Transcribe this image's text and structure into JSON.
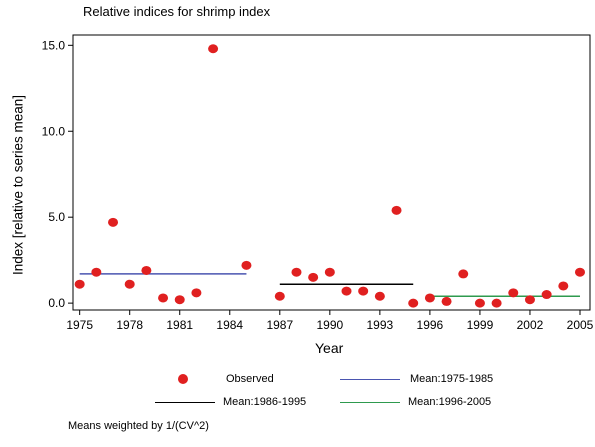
{
  "chart_data": {
    "type": "scatter",
    "title": "Relative indices for shrimp index",
    "xlabel": "Year",
    "ylabel": "Index [relative to series mean]",
    "xlim": [
      1974.6,
      2005.6
    ],
    "ylim": [
      -0.4,
      15.6
    ],
    "x_ticks": [
      "1975",
      "1978",
      "1981",
      "1984",
      "1987",
      "1990",
      "1993",
      "1996",
      "1999",
      "2002",
      "2005"
    ],
    "y_ticks": [
      "0.0",
      "5.0",
      "10.0",
      "15.0"
    ],
    "grid": false,
    "series": [
      {
        "name": "Observed",
        "color": "#e02020",
        "points": [
          {
            "x": 1975,
            "y": 1.1
          },
          {
            "x": 1976,
            "y": 1.8
          },
          {
            "x": 1977,
            "y": 4.7
          },
          {
            "x": 1978,
            "y": 1.1
          },
          {
            "x": 1979,
            "y": 1.9
          },
          {
            "x": 1980,
            "y": 0.3
          },
          {
            "x": 1981,
            "y": 0.2
          },
          {
            "x": 1982,
            "y": 0.6
          },
          {
            "x": 1983,
            "y": 14.8
          },
          {
            "x": 1985,
            "y": 2.2
          },
          {
            "x": 1987,
            "y": 0.4
          },
          {
            "x": 1988,
            "y": 1.8
          },
          {
            "x": 1989,
            "y": 1.5
          },
          {
            "x": 1990,
            "y": 1.8
          },
          {
            "x": 1991,
            "y": 0.7
          },
          {
            "x": 1992,
            "y": 0.7
          },
          {
            "x": 1993,
            "y": 0.4
          },
          {
            "x": 1994,
            "y": 5.4
          },
          {
            "x": 1995,
            "y": 0.0
          },
          {
            "x": 1996,
            "y": 0.3
          },
          {
            "x": 1997,
            "y": 0.1
          },
          {
            "x": 1998,
            "y": 1.7
          },
          {
            "x": 1999,
            "y": 0.0
          },
          {
            "x": 2000,
            "y": 0.0
          },
          {
            "x": 2001,
            "y": 0.6
          },
          {
            "x": 2002,
            "y": 0.2
          },
          {
            "x": 2003,
            "y": 0.5
          },
          {
            "x": 2004,
            "y": 1.0
          },
          {
            "x": 2005,
            "y": 1.8
          }
        ]
      }
    ],
    "mean_lines": [
      {
        "name": "Mean:1975-1985",
        "color": "#4a55b0",
        "x_start": 1975,
        "x_end": 1985,
        "y": 1.7
      },
      {
        "name": "Mean:1986-1995",
        "color": "#000000",
        "x_start": 1987,
        "x_end": 1995,
        "y": 1.1
      },
      {
        "name": "Mean:1996-2005",
        "color": "#2e9a4e",
        "x_start": 1996,
        "x_end": 2005,
        "y": 0.4
      }
    ],
    "legend": {
      "placement": "bottom",
      "entries": [
        "Observed",
        "Mean:1975-1985",
        "Mean:1986-1995",
        "Mean:1996-2005"
      ]
    },
    "footnote": "Means weighted by 1/(CV^2)"
  }
}
